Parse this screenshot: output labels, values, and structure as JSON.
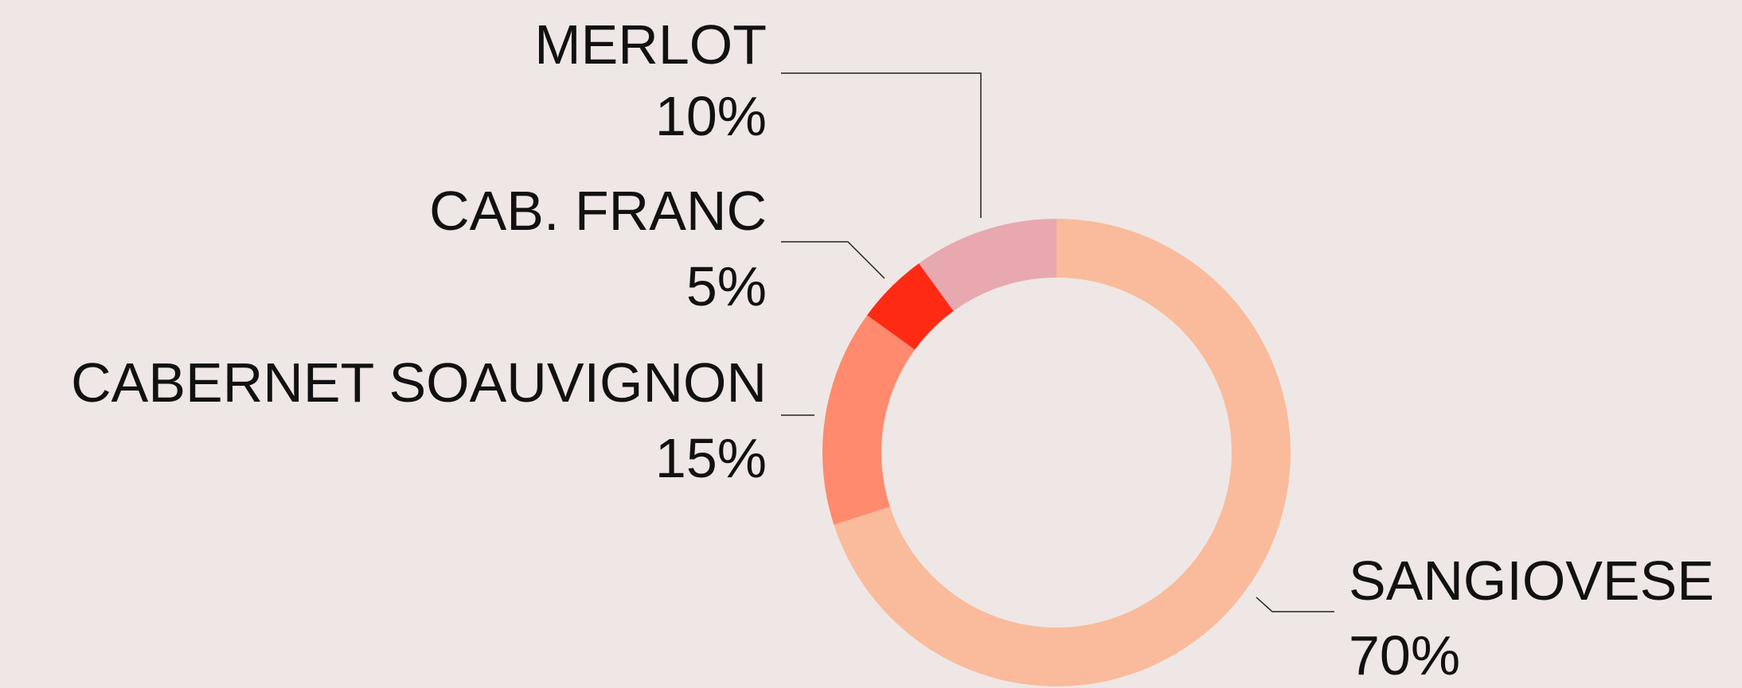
{
  "chart_data": {
    "type": "donut",
    "categories": [
      "SANGIOVESE",
      "CABERNET SOAUVIGNON",
      "CAB. FRANC",
      "MERLOT"
    ],
    "values": [
      70,
      15,
      5,
      10
    ],
    "value_labels": [
      "70%",
      "15%",
      "5%",
      "10%"
    ],
    "colors": [
      "#f9bb9b",
      "#ff8a6e",
      "#ff2a14",
      "#e8a8b0"
    ]
  }
}
